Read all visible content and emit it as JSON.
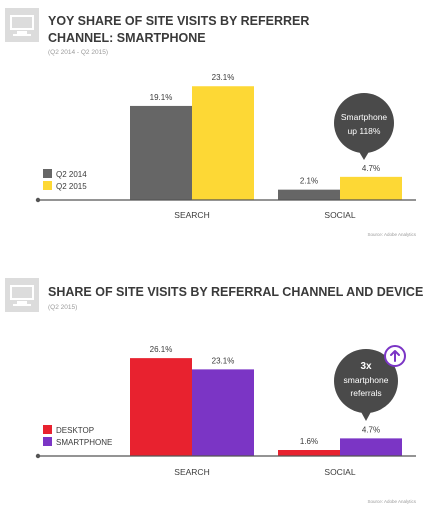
{
  "colors": {
    "desktop_2014": "#666666",
    "smartphone_2015": "#fdd835",
    "desktop_red": "#e8222f",
    "smartphone_purple": "#7b35c5",
    "callout": "#4a4a4a",
    "axis": "#555555"
  },
  "icons": [
    "monitor-icon",
    "monitor-icon",
    "arrow-up-icon"
  ],
  "chart_data": [
    {
      "type": "bar",
      "title_line1": "YOY SHARE OF SITE VISITS BY REFERRER",
      "title_line2": "CHANNEL: SMARTPHONE",
      "subtitle": "(Q2 2014 - Q2 2015)",
      "categories": [
        "SEARCH",
        "SOCIAL"
      ],
      "series": [
        {
          "name": "Q2 2014",
          "values": [
            19.1,
            2.1
          ],
          "labels": [
            "19.1%",
            "2.1%"
          ]
        },
        {
          "name": "Q2 2015",
          "values": [
            23.1,
            4.7
          ],
          "labels": [
            "23.1%",
            "4.7%"
          ]
        }
      ],
      "ylim": [
        0,
        25
      ],
      "grid": false,
      "legend": "left",
      "callout": [
        "Smartphone",
        "up 118%"
      ],
      "source": "Source: Adobe Analytics"
    },
    {
      "type": "bar",
      "title_line1": "SHARE OF SITE VISITS BY REFERRAL CHANNEL AND DEVICE",
      "subtitle": "(Q2 2015)",
      "categories": [
        "SEARCH",
        "SOCIAL"
      ],
      "series": [
        {
          "name": "DESKTOP",
          "values": [
            26.1,
            1.6
          ],
          "labels": [
            "26.1%",
            "1.6%"
          ]
        },
        {
          "name": "SMARTPHONE",
          "values": [
            23.1,
            4.7
          ],
          "labels": [
            "23.1%",
            "4.7%"
          ]
        }
      ],
      "ylim": [
        0,
        28
      ],
      "grid": false,
      "legend": "left",
      "callout": [
        "3x",
        "smartphone",
        "referrals"
      ],
      "source": "Source: Adobe Analytics"
    }
  ]
}
